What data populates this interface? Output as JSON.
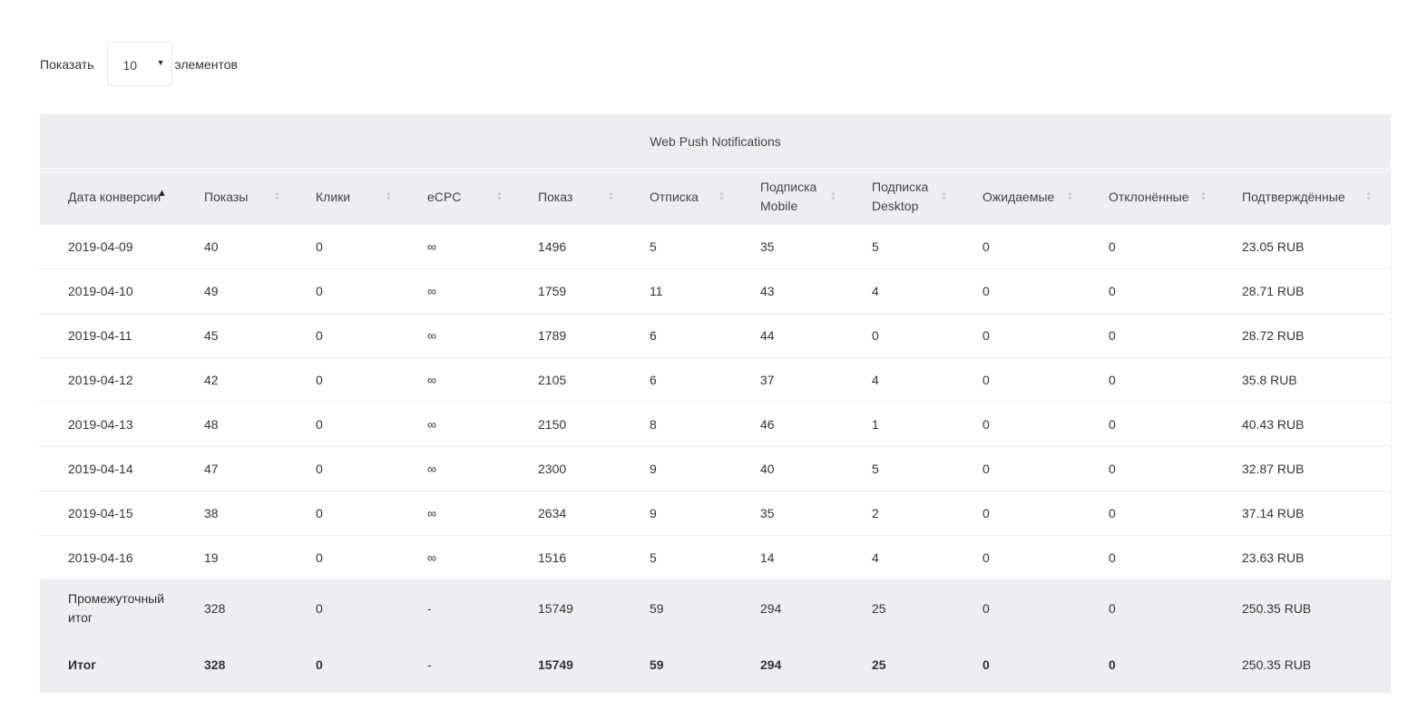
{
  "length_control": {
    "prefix": "Показать",
    "value": "10",
    "suffix": "элементов"
  },
  "table": {
    "group_header": "Web Push Notifications",
    "columns": [
      {
        "label": "Дата конверсии",
        "sort": "asc"
      },
      {
        "label": "Показы",
        "sort": "none"
      },
      {
        "label": "Клики",
        "sort": "none"
      },
      {
        "label": "eCPC",
        "sort": "none"
      },
      {
        "label": "Показ",
        "sort": "none"
      },
      {
        "label": "Отписка",
        "sort": "none"
      },
      {
        "label": "Подписка Mobile",
        "sort": "none"
      },
      {
        "label": "Подписка Desktop",
        "sort": "none"
      },
      {
        "label": "Ожидаемые",
        "sort": "none"
      },
      {
        "label": "Отклонённые",
        "sort": "none"
      },
      {
        "label": "Подтверждённые",
        "sort": "none"
      }
    ],
    "rows": [
      [
        "2019-04-09",
        "40",
        "0",
        "∞",
        "1496",
        "5",
        "35",
        "5",
        "0",
        "0",
        "23.05 RUB"
      ],
      [
        "2019-04-10",
        "49",
        "0",
        "∞",
        "1759",
        "11",
        "43",
        "4",
        "0",
        "0",
        "28.71 RUB"
      ],
      [
        "2019-04-11",
        "45",
        "0",
        "∞",
        "1789",
        "6",
        "44",
        "0",
        "0",
        "0",
        "28.72 RUB"
      ],
      [
        "2019-04-12",
        "42",
        "0",
        "∞",
        "2105",
        "6",
        "37",
        "4",
        "0",
        "0",
        "35.8 RUB"
      ],
      [
        "2019-04-13",
        "48",
        "0",
        "∞",
        "2150",
        "8",
        "46",
        "1",
        "0",
        "0",
        "40.43 RUB"
      ],
      [
        "2019-04-14",
        "47",
        "0",
        "∞",
        "2300",
        "9",
        "40",
        "5",
        "0",
        "0",
        "32.87 RUB"
      ],
      [
        "2019-04-15",
        "38",
        "0",
        "∞",
        "2634",
        "9",
        "35",
        "2",
        "0",
        "0",
        "37.14 RUB"
      ],
      [
        "2019-04-16",
        "19",
        "0",
        "∞",
        "1516",
        "5",
        "14",
        "4",
        "0",
        "0",
        "23.63 RUB"
      ]
    ],
    "subtotal": [
      "Промежуточный итог",
      "328",
      "0",
      "-",
      "15749",
      "59",
      "294",
      "25",
      "0",
      "0",
      "250.35 RUB"
    ],
    "total": [
      "Итог",
      "328",
      "0",
      "-",
      "15749",
      "59",
      "294",
      "25",
      "0",
      "0",
      "250.35 RUB"
    ]
  }
}
